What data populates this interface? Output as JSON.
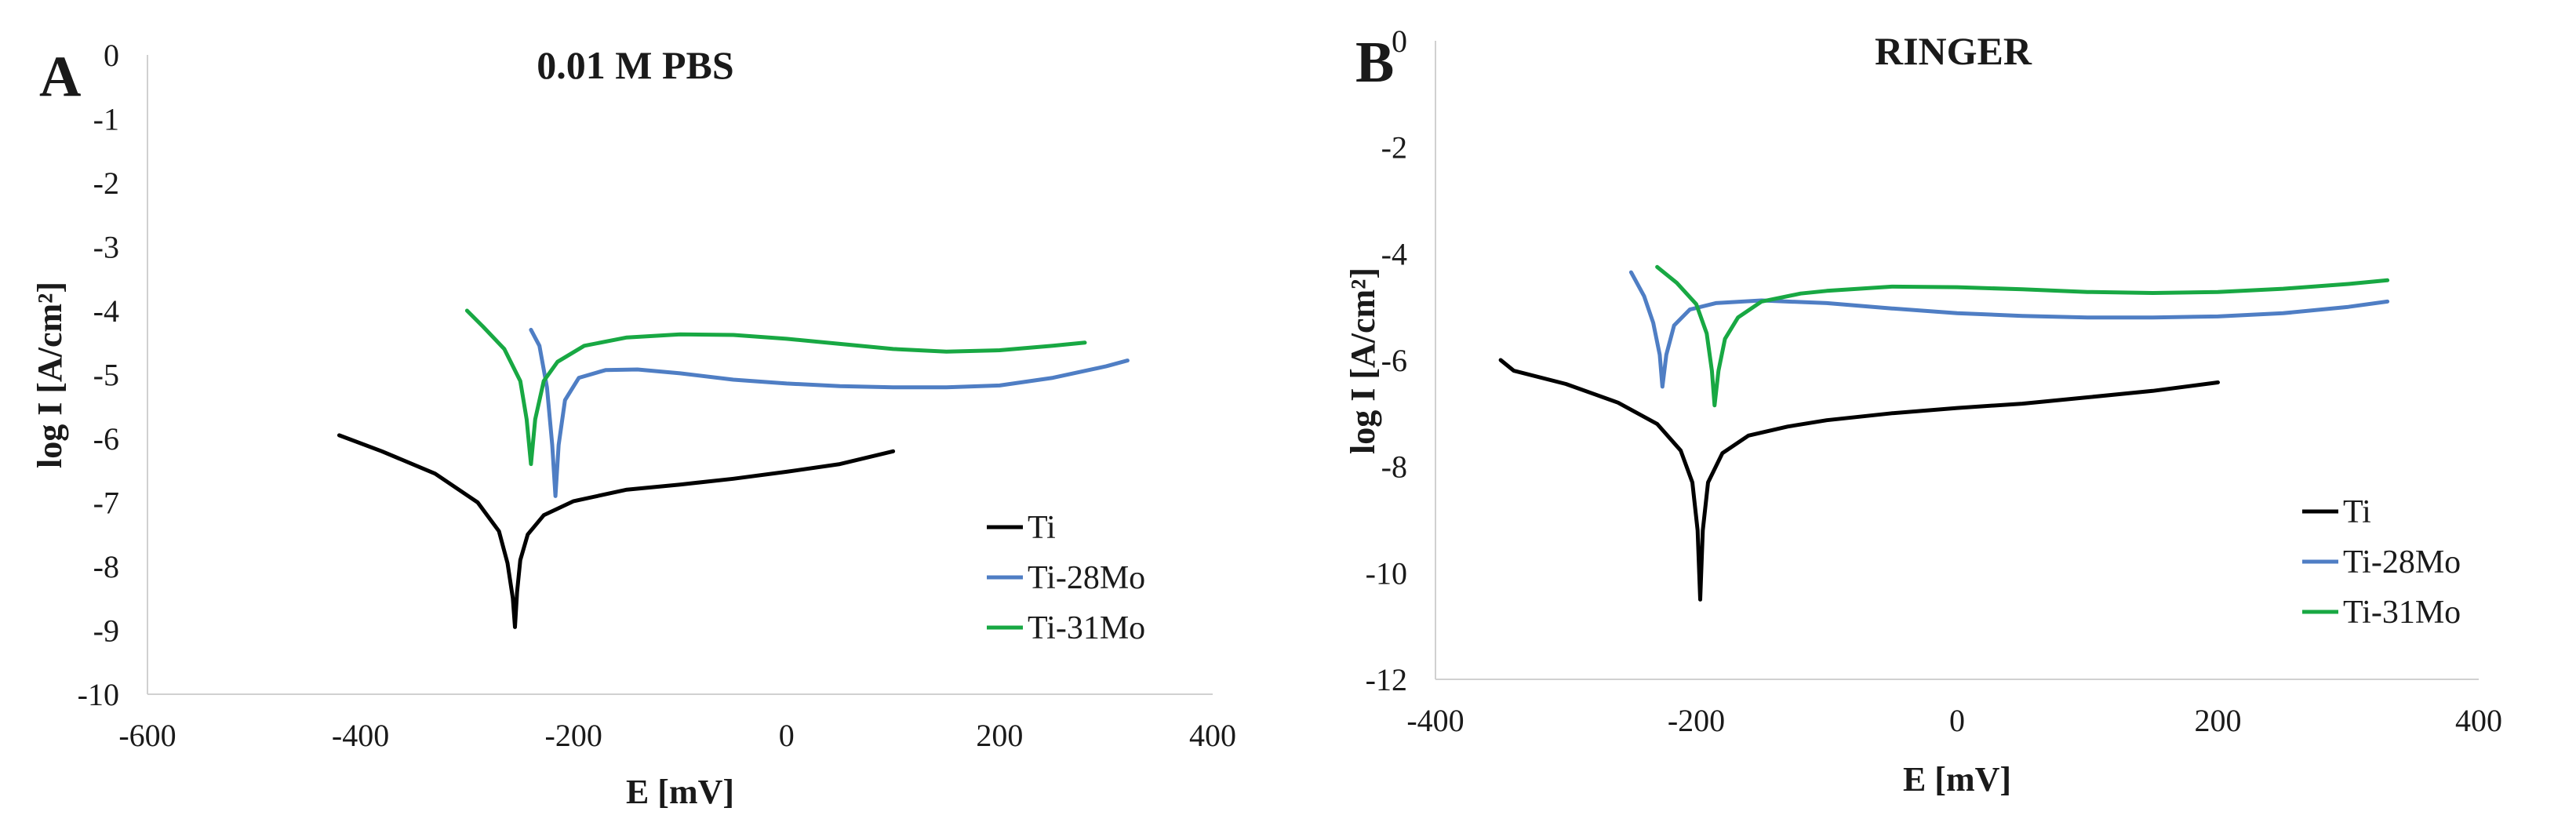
{
  "chart_data": [
    {
      "type": "line",
      "panel_label": "A",
      "title": "0.01 M PBS",
      "xlabel": "E [mV]",
      "ylabel": "log I [A/cm²]",
      "xlim": [
        -600,
        400
      ],
      "ylim": [
        -10,
        0
      ],
      "xticks": [
        -600,
        -400,
        -200,
        0,
        200,
        400
      ],
      "yticks": [
        0,
        -1,
        -2,
        -3,
        -4,
        -5,
        -6,
        -7,
        -8,
        -9,
        -10
      ],
      "grid": false,
      "legend_position": "bottom-right",
      "series": [
        {
          "name": "Ti",
          "color": "#000000",
          "points": [
            [
              -420,
              -5.95
            ],
            [
              -380,
              -6.2
            ],
            [
              -330,
              -6.55
            ],
            [
              -290,
              -7.0
            ],
            [
              -270,
              -7.45
            ],
            [
              -262,
              -7.95
            ],
            [
              -257,
              -8.5
            ],
            [
              -255,
              -8.95
            ],
            [
              -253,
              -8.4
            ],
            [
              -250,
              -7.9
            ],
            [
              -243,
              -7.5
            ],
            [
              -228,
              -7.2
            ],
            [
              -200,
              -6.98
            ],
            [
              -150,
              -6.8
            ],
            [
              -100,
              -6.72
            ],
            [
              -50,
              -6.63
            ],
            [
              0,
              -6.52
            ],
            [
              50,
              -6.4
            ],
            [
              100,
              -6.2
            ]
          ]
        },
        {
          "name": "Ti-28Mo",
          "color": "#4f7ec4",
          "points": [
            [
              -240,
              -4.3
            ],
            [
              -232,
              -4.55
            ],
            [
              -225,
              -5.2
            ],
            [
              -220,
              -6.1
            ],
            [
              -217,
              -6.9
            ],
            [
              -214,
              -6.1
            ],
            [
              -208,
              -5.4
            ],
            [
              -195,
              -5.05
            ],
            [
              -170,
              -4.93
            ],
            [
              -140,
              -4.92
            ],
            [
              -100,
              -4.98
            ],
            [
              -50,
              -5.08
            ],
            [
              0,
              -5.14
            ],
            [
              50,
              -5.18
            ],
            [
              100,
              -5.2
            ],
            [
              150,
              -5.2
            ],
            [
              200,
              -5.17
            ],
            [
              250,
              -5.05
            ],
            [
              300,
              -4.87
            ],
            [
              320,
              -4.78
            ]
          ]
        },
        {
          "name": "Ti-31Mo",
          "color": "#18a843",
          "points": [
            [
              -300,
              -4.0
            ],
            [
              -285,
              -4.25
            ],
            [
              -265,
              -4.6
            ],
            [
              -250,
              -5.1
            ],
            [
              -244,
              -5.7
            ],
            [
              -240,
              -6.4
            ],
            [
              -236,
              -5.7
            ],
            [
              -228,
              -5.1
            ],
            [
              -215,
              -4.8
            ],
            [
              -190,
              -4.55
            ],
            [
              -150,
              -4.42
            ],
            [
              -100,
              -4.37
            ],
            [
              -50,
              -4.38
            ],
            [
              0,
              -4.44
            ],
            [
              50,
              -4.52
            ],
            [
              100,
              -4.6
            ],
            [
              150,
              -4.64
            ],
            [
              200,
              -4.62
            ],
            [
              250,
              -4.55
            ],
            [
              280,
              -4.5
            ]
          ]
        }
      ]
    },
    {
      "type": "line",
      "panel_label": "B",
      "title": "RINGER",
      "xlabel": "E [mV]",
      "ylabel": "log I [A/cm²]",
      "xlim": [
        -400,
        400
      ],
      "ylim": [
        -12,
        0
      ],
      "xticks": [
        -400,
        -200,
        0,
        200,
        400
      ],
      "yticks": [
        0,
        -2,
        -4,
        -6,
        -8,
        -10,
        -12
      ],
      "grid": false,
      "legend_position": "bottom-right",
      "series": [
        {
          "name": "Ti",
          "color": "#000000",
          "points": [
            [
              -350,
              -6.0
            ],
            [
              -340,
              -6.2
            ],
            [
              -300,
              -6.45
            ],
            [
              -260,
              -6.8
            ],
            [
              -230,
              -7.2
            ],
            [
              -212,
              -7.7
            ],
            [
              -203,
              -8.3
            ],
            [
              -199,
              -9.2
            ],
            [
              -197,
              -10.5
            ],
            [
              -195,
              -9.2
            ],
            [
              -191,
              -8.3
            ],
            [
              -180,
              -7.75
            ],
            [
              -160,
              -7.42
            ],
            [
              -130,
              -7.25
            ],
            [
              -100,
              -7.13
            ],
            [
              -50,
              -7.0
            ],
            [
              0,
              -6.9
            ],
            [
              50,
              -6.82
            ],
            [
              100,
              -6.7
            ],
            [
              150,
              -6.58
            ],
            [
              200,
              -6.42
            ]
          ]
        },
        {
          "name": "Ti-28Mo",
          "color": "#4f7ec4",
          "points": [
            [
              -250,
              -4.35
            ],
            [
              -240,
              -4.8
            ],
            [
              -233,
              -5.3
            ],
            [
              -228,
              -5.9
            ],
            [
              -226,
              -6.5
            ],
            [
              -223,
              -5.9
            ],
            [
              -217,
              -5.35
            ],
            [
              -205,
              -5.05
            ],
            [
              -185,
              -4.93
            ],
            [
              -150,
              -4.88
            ],
            [
              -100,
              -4.93
            ],
            [
              -50,
              -5.03
            ],
            [
              0,
              -5.12
            ],
            [
              50,
              -5.17
            ],
            [
              100,
              -5.2
            ],
            [
              150,
              -5.2
            ],
            [
              200,
              -5.18
            ],
            [
              250,
              -5.12
            ],
            [
              300,
              -5.0
            ],
            [
              330,
              -4.9
            ]
          ]
        },
        {
          "name": "Ti-31Mo",
          "color": "#18a843",
          "points": [
            [
              -230,
              -4.25
            ],
            [
              -215,
              -4.55
            ],
            [
              -200,
              -4.95
            ],
            [
              -192,
              -5.5
            ],
            [
              -188,
              -6.2
            ],
            [
              -186,
              -6.85
            ],
            [
              -183,
              -6.2
            ],
            [
              -178,
              -5.6
            ],
            [
              -168,
              -5.2
            ],
            [
              -150,
              -4.9
            ],
            [
              -120,
              -4.75
            ],
            [
              -100,
              -4.7
            ],
            [
              -50,
              -4.62
            ],
            [
              0,
              -4.63
            ],
            [
              50,
              -4.67
            ],
            [
              100,
              -4.72
            ],
            [
              150,
              -4.74
            ],
            [
              200,
              -4.72
            ],
            [
              250,
              -4.66
            ],
            [
              300,
              -4.57
            ],
            [
              330,
              -4.5
            ]
          ]
        }
      ]
    }
  ]
}
